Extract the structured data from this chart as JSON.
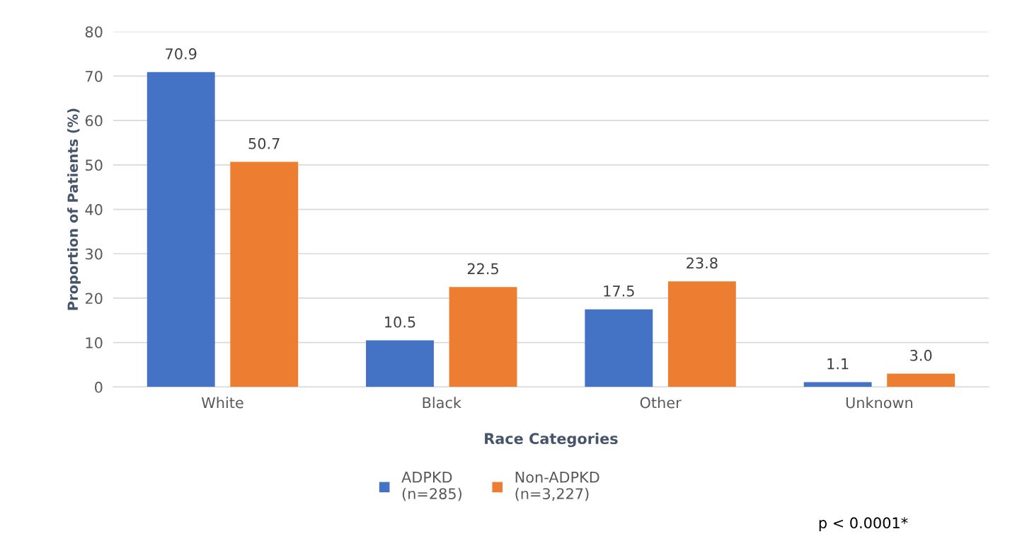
{
  "chart_data": {
    "type": "bar",
    "xlabel": "Race Categories",
    "ylabel": "Proportion of Patients (%)",
    "categories": [
      "White",
      "Black",
      "Other",
      "Unknown"
    ],
    "series": [
      {
        "name": "ADPKD\n(n=285)",
        "color": "#4472c4",
        "values": [
          70.9,
          10.5,
          17.5,
          1.1
        ],
        "value_labels": [
          "70.9",
          "10.5",
          "17.5",
          "1.1"
        ]
      },
      {
        "name": "Non-ADPKD\n(n=3,227)",
        "color": "#ed7d31",
        "values": [
          50.7,
          22.5,
          23.8,
          3.0
        ],
        "value_labels": [
          "50.7",
          "22.5",
          "23.8",
          "3.0"
        ]
      }
    ],
    "ylim": [
      0,
      80
    ],
    "yticks": [
      0,
      10,
      20,
      30,
      40,
      50,
      60,
      70,
      80
    ],
    "grid": "y",
    "legend": "bottom",
    "annotations": [
      "p < 0.0001*"
    ]
  }
}
